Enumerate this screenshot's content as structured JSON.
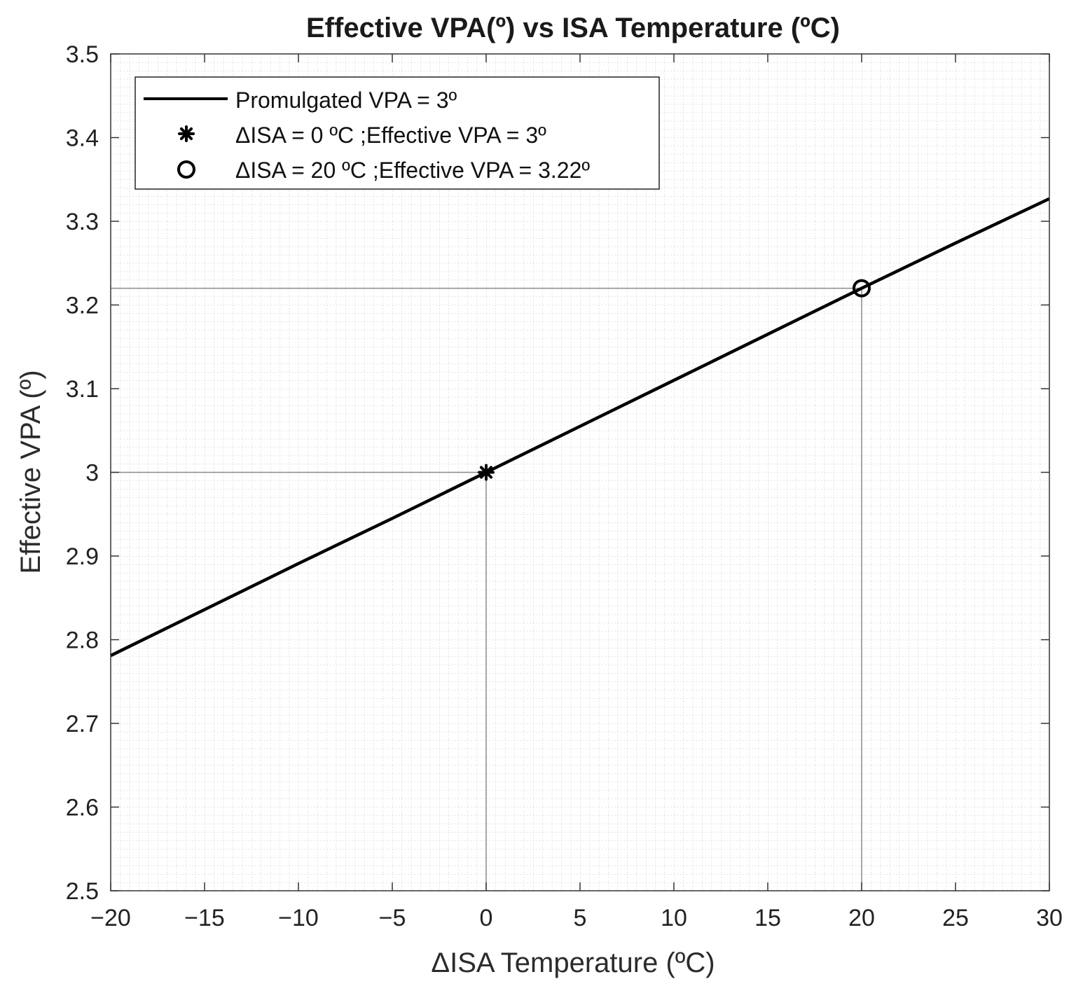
{
  "chart_data": {
    "type": "line",
    "title": "Effective VPA(º) vs ISA Temperature (ºC)",
    "xlabel": "ΔISA Temperature (ºC)",
    "ylabel": "Effective VPA (º)",
    "xlim": [
      -20,
      30
    ],
    "ylim": [
      2.5,
      3.5
    ],
    "xticks": [
      -20,
      -15,
      -10,
      -5,
      0,
      5,
      10,
      15,
      20,
      25,
      30
    ],
    "xtick_labels": [
      "−20",
      "−15",
      "−10",
      "−5",
      "0",
      "5",
      "10",
      "15",
      "20",
      "25",
      "30"
    ],
    "yticks": [
      2.5,
      2.6,
      2.7,
      2.8,
      2.9,
      3.0,
      3.1,
      3.2,
      3.3,
      3.4,
      3.5
    ],
    "ytick_labels": [
      "2.5",
      "2.6",
      "2.7",
      "2.8",
      "2.9",
      "3",
      "3.1",
      "3.2",
      "3.3",
      "3.4",
      "3.5"
    ],
    "grid": "minor dotted",
    "legend_position": "top-left",
    "series": [
      {
        "name": "Promulgated VPA = 3º",
        "kind": "line",
        "color": "#000000",
        "x": [
          -20,
          -15,
          -10,
          -5,
          0,
          5,
          10,
          15,
          20,
          25,
          30
        ],
        "y": [
          2.781,
          2.836,
          2.891,
          2.945,
          3.0,
          3.055,
          3.11,
          3.165,
          3.22,
          3.274,
          3.327
        ]
      },
      {
        "name": "ΔISA = 0 ºC ;Effective VPA = 3º",
        "kind": "marker-star",
        "color": "#000000",
        "x": [
          0
        ],
        "y": [
          3.0
        ]
      },
      {
        "name": "ΔISA = 20 ºC ;Effective VPA = 3.22º",
        "kind": "marker-circle",
        "color": "#000000",
        "x": [
          20
        ],
        "y": [
          3.22
        ]
      }
    ],
    "reference_lines": [
      {
        "x": 0,
        "y": 3.0
      },
      {
        "x": 20,
        "y": 3.22
      }
    ]
  }
}
